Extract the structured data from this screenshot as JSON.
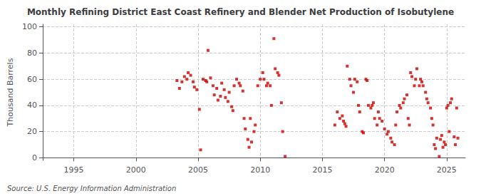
{
  "chart_data": {
    "type": "scatter",
    "title": "Monthly Refining District East Coast Refinery and Blender Net Production of Isobutylene",
    "ylabel": "Thousand Barrels",
    "annotation": "Source: U.S. Energy Information Administration",
    "color": "#cc0000",
    "marker": "square",
    "grid": true,
    "xlim": [
      1992.5,
      2026.5
    ],
    "ylim": [
      -2,
      102
    ],
    "xticks": [
      1995,
      2000,
      2005,
      2010,
      2015,
      2020,
      2025
    ],
    "yticks": [
      0,
      20,
      40,
      60,
      80,
      100
    ],
    "x": [
      2003.3,
      2003.5,
      2003.7,
      2003.9,
      2004.1,
      2004.2,
      2004.4,
      2004.6,
      2004.7,
      2004.9,
      2005.1,
      2005.2,
      2005.4,
      2005.6,
      2005.7,
      2005.8,
      2006.0,
      2006.2,
      2006.3,
      2006.5,
      2006.6,
      2006.8,
      2006.9,
      2007.1,
      2007.2,
      2007.4,
      2007.5,
      2007.7,
      2007.8,
      2007.9,
      2008.1,
      2008.3,
      2008.4,
      2008.6,
      2008.7,
      2008.8,
      2009.0,
      2009.1,
      2009.2,
      2009.3,
      2009.5,
      2009.6,
      2009.8,
      2010.0,
      2010.2,
      2010.3,
      2010.5,
      2010.6,
      2010.8,
      2010.9,
      2011.1,
      2011.2,
      2011.4,
      2011.5,
      2011.7,
      2011.8,
      2012.0,
      2016.0,
      2016.2,
      2016.4,
      2016.6,
      2016.7,
      2016.8,
      2016.9,
      2017.0,
      2017.2,
      2017.3,
      2017.5,
      2017.6,
      2017.8,
      2017.9,
      2018.0,
      2018.2,
      2018.3,
      2018.5,
      2018.6,
      2018.7,
      2018.9,
      2019.0,
      2019.1,
      2019.2,
      2019.4,
      2019.5,
      2019.6,
      2019.8,
      2020.0,
      2020.2,
      2020.3,
      2020.5,
      2020.6,
      2020.8,
      2020.9,
      2021.0,
      2021.2,
      2021.3,
      2021.5,
      2021.6,
      2021.8,
      2021.9,
      2022.0,
      2022.1,
      2022.2,
      2022.4,
      2022.5,
      2022.6,
      2022.8,
      2022.9,
      2023.0,
      2023.1,
      2023.3,
      2023.4,
      2023.5,
      2023.7,
      2023.8,
      2023.9,
      2024.0,
      2024.1,
      2024.2,
      2024.4,
      2024.5,
      2024.6,
      2024.7,
      2024.8,
      2024.9,
      2025.0,
      2025.1,
      2025.2,
      2025.3,
      2025.4,
      2025.6,
      2025.7,
      2025.8,
      2025.9
    ],
    "values": [
      59,
      53,
      58,
      62,
      60,
      65,
      63,
      58,
      54,
      52,
      37,
      6,
      60,
      59,
      58,
      82,
      61,
      55,
      48,
      53,
      44,
      47,
      57,
      52,
      46,
      43,
      50,
      39,
      36,
      55,
      60,
      57,
      55,
      51,
      30,
      22,
      14,
      8,
      30,
      12,
      20,
      25,
      55,
      60,
      65,
      60,
      55,
      57,
      55,
      40,
      91,
      68,
      65,
      63,
      42,
      20,
      1,
      25,
      35,
      30,
      32,
      28,
      26,
      24,
      70,
      60,
      55,
      50,
      60,
      58,
      40,
      35,
      20,
      19,
      60,
      59,
      40,
      38,
      40,
      42,
      30,
      25,
      35,
      30,
      28,
      22,
      18,
      20,
      15,
      12,
      10,
      25,
      35,
      40,
      38,
      42,
      45,
      48,
      30,
      25,
      65,
      62,
      55,
      60,
      68,
      55,
      60,
      58,
      55,
      50,
      45,
      42,
      38,
      30,
      25,
      10,
      7,
      15,
      1,
      14,
      17,
      8,
      12,
      10,
      38,
      40,
      20,
      42,
      45,
      16,
      10,
      38,
      15
    ]
  }
}
